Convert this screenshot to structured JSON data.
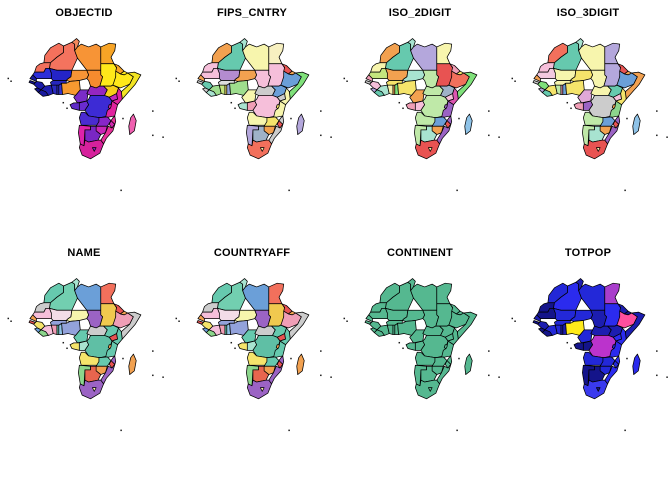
{
  "style": {
    "background": "#ffffff",
    "border_color": "#000000",
    "title_color": "#000000",
    "island_dot_color": "#1a1a1a"
  },
  "figure": {
    "kind": "choropleth-small-multiples",
    "region": "Africa",
    "rows": 2,
    "cols": 4
  },
  "panels": [
    {
      "title": "OBJECTID",
      "default_fill": "#F2A150",
      "fills": {
        "morocco": "#F4715C",
        "western-sahara": "#F2705C",
        "algeria": "#F4735E",
        "tunisia": "#F2885C",
        "libya": "#F79436",
        "egypt": "#F7A426",
        "mauritania": "#2E2ED8",
        "mali": "#2424C8",
        "senegal": "#1A1A9E",
        "guinea-bissau": "#15158F",
        "guinea": "#1C1CA8",
        "sierra-leone": "#14148A",
        "liberia": "#1A1A9E",
        "cote-divoire": "#2020B0",
        "ghana": "#2A2AC0",
        "togo": "#2E2EC8",
        "benin": "#3333D0",
        "burkina-faso": "#2626BD",
        "niger": "#F79436",
        "chad": "#F78B2E",
        "sudan": "#FFE81A",
        "south-sudan": "#F7CE1A",
        "eritrea": "#F7A426",
        "djibouti": "#FFE81A",
        "ethiopia": "#FFE81A",
        "somalia": "#F2E423",
        "nigeria": "#F79A30",
        "cameroon": "#7A2CC8",
        "car": "#9426C0",
        "uganda": "#C426C0",
        "kenya": "#E0249E",
        "gabon": "#5F2BC8",
        "congo": "#6A2BD0",
        "drc": "#3D2BD5",
        "rwanda": "#D028B0",
        "tanzania": "#E0249E",
        "angola": "#4A2BD0",
        "zambia": "#8826C8",
        "malawi": "#D028B0",
        "mozambique": "#E8309A",
        "zimbabwe": "#C827B8",
        "namibia": "#DD22AA",
        "botswana": "#7A27C4",
        "south-africa": "#D6219C",
        "lesotho": "#8826C8",
        "madagascar": "#F060B0"
      }
    },
    {
      "title": "FIPS_CNTRY",
      "default_fill": "#CCCCCC",
      "fills": {
        "morocco": "#F2A150",
        "western-sahara": "#F6BFDA",
        "algeria": "#66C9AE",
        "tunisia": "#A8E3D0",
        "libya": "#F7F5AD",
        "egypt": "#F7F0C0",
        "mauritania": "#F6BFDA",
        "mali": "#B48CD0",
        "senegal": "#F2A150",
        "guinea-bissau": "#CCCCCC",
        "guinea": "#66C9AE",
        "sierra-leone": "#CCCCCC",
        "liberia": "#A8E3D0",
        "cote-divoire": "#9FDE8E",
        "ghana": "#C4E57E",
        "togo": "#F5E46B",
        "benin": "#93A2DB",
        "burkina-faso": "#DDDDDD",
        "niger": "#F2A150",
        "chad": "#F6BFDA",
        "sudan": "#F6BFDA",
        "south-sudan": "#6B9FD8",
        "eritrea": "#E85352",
        "djibouti": "#F2A150",
        "ethiopia": "#6B9FD8",
        "somalia": "#7FE07A",
        "nigeria": "#9FDE8E",
        "cameroon": "#F7F5AD",
        "car": "#CCCCCC",
        "uganda": "#CCCCCC",
        "kenya": "#F7F5AD",
        "gabon": "#A8E3D0",
        "congo": "#F09EB6",
        "drc": "#F6BFDA",
        "rwanda": "#F5E46B",
        "tanzania": "#F7F5AD",
        "angola": "#F7F5AD",
        "zambia": "#F5E46B",
        "malawi": "#E85352",
        "mozambique": "#CCCCCC",
        "zimbabwe": "#F2A150",
        "namibia": "#B4A7DC",
        "botswana": "#9FB2C8",
        "south-africa": "#F2705C",
        "lesotho": "#F7F5AD",
        "madagascar": "#B4A7DC"
      }
    },
    {
      "title": "ISO_2DIGIT",
      "default_fill": "#CCCCCC",
      "fills": {
        "morocco": "#F2A150",
        "western-sahara": "#F7F5AD",
        "algeria": "#66C9AE",
        "tunisia": "#A8E3D0",
        "libya": "#B4A7DC",
        "egypt": "#F7F5AD",
        "mauritania": "#C4E57E",
        "mali": "#F2A150",
        "senegal": "#F09EB6",
        "guinea-bissau": "#CCCCCC",
        "guinea": "#F6BFDA",
        "sierra-leone": "#B4A7DC",
        "liberia": "#66C9AE",
        "cote-divoire": "#A8E3D0",
        "ghana": "#F7F5AD",
        "togo": "#F2A150",
        "benin": "#7FE07A",
        "burkina-faso": "#F5E46B",
        "niger": "#A8E3D0",
        "chad": "#BFE9A8",
        "sudan": "#E85352",
        "south-sudan": "#9FB2C8",
        "eritrea": "#F09EB6",
        "djibouti": "#F5E46B",
        "ethiopia": "#F2705C",
        "somalia": "#7FE07A",
        "nigeria": "#F5E46B",
        "cameroon": "#F2A150",
        "car": "#BFE9A8",
        "uganda": "#F6BFDA",
        "kenya": "#DD55B0",
        "gabon": "#F09EB6",
        "congo": "#F6BFDA",
        "drc": "#BFE9A8",
        "rwanda": "#9B63C4",
        "tanzania": "#9B63C4",
        "angola": "#BFE9A8",
        "zambia": "#6B9FD8",
        "malawi": "#E85352",
        "mozambique": "#9B63C4",
        "zimbabwe": "#F2A150",
        "namibia": "#BFE9A8",
        "botswana": "#A8E3D0",
        "south-africa": "#E85352",
        "lesotho": "#F7F5AD",
        "madagascar": "#8FC3E8"
      }
    },
    {
      "title": "ISO_3DIGIT",
      "default_fill": "#CCCCCC",
      "fills": {
        "morocco": "#F2705C",
        "western-sahara": "#F6BFDA",
        "algeria": "#66C9AE",
        "tunisia": "#A8E3D0",
        "libya": "#F7F5AD",
        "egypt": "#B4A7DC",
        "mauritania": "#F3C9E0",
        "mali": "#F7F5AD",
        "senegal": "#F2A150",
        "guinea-bissau": "#CCCCCC",
        "guinea": "#7FE07A",
        "sierra-leone": "#B4A7DC",
        "liberia": "#66C9AE",
        "cote-divoire": "#F5E46B",
        "ghana": "#BFE9A8",
        "togo": "#F09EB6",
        "benin": "#6B9FD8",
        "burkina-faso": "#F7F5AD",
        "niger": "#F5E46B",
        "chad": "#F7F5AD",
        "sudan": "#B4A7DC",
        "south-sudan": "#66C9AE",
        "eritrea": "#E85352",
        "djibouti": "#F2A150",
        "ethiopia": "#6B9FD8",
        "somalia": "#F2A150",
        "nigeria": "#F5E46B",
        "cameroon": "#E0A8D8",
        "car": "#F7F5AD",
        "uganda": "#F6BFDA",
        "kenya": "#F5E46B",
        "gabon": "#F09EB6",
        "congo": "#9B63C4",
        "drc": "#CCCCCC",
        "rwanda": "#F2A150",
        "tanzania": "#8CD68C",
        "angola": "#BFE9A8",
        "zambia": "#6B9FD8",
        "malawi": "#E85352",
        "mozambique": "#9B63C4",
        "zimbabwe": "#F2A150",
        "namibia": "#BFE9A8",
        "botswana": "#A8E3D0",
        "south-africa": "#E85352",
        "lesotho": "#F7F5AD",
        "madagascar": "#8FC3E8"
      }
    },
    {
      "title": "NAME",
      "default_fill": "#CCCCCC",
      "fills": {
        "morocco": "#66C9AE",
        "western-sahara": "#CCCCCC",
        "algeria": "#72CFB0",
        "tunisia": "#A8E3D0",
        "libya": "#6B9FD8",
        "egypt": "#F2705C",
        "mauritania": "#F6BFDA",
        "mali": "#F3DCE8",
        "senegal": "#F2A150",
        "guinea-bissau": "#E85352",
        "guinea": "#F5E46B",
        "sierra-leone": "#6B9FD8",
        "liberia": "#8CD68C",
        "cote-divoire": "#F6BFDA",
        "ghana": "#F09EB6",
        "togo": "#66C9AE",
        "benin": "#8FC3E8",
        "burkina-faso": "#93A2DB",
        "niger": "#F7F5AD",
        "chad": "#9B63C4",
        "sudan": "#F0C94F",
        "south-sudan": "#66C9AE",
        "eritrea": "#E85352",
        "djibouti": "#F2A150",
        "ethiopia": "#F09EB6",
        "somalia": "#CCCCCC",
        "nigeria": "#93A2DB",
        "cameroon": "#66C9AE",
        "car": "#CCCCCC",
        "uganda": "#E85352",
        "kenya": "#66C9AE",
        "gabon": "#F5E46B",
        "congo": "#A8E3D0",
        "drc": "#5FBFA5",
        "rwanda": "#F2A150",
        "tanzania": "#66C9AE",
        "angola": "#F5E46B",
        "zambia": "#66C9AE",
        "malawi": "#E85352",
        "mozambique": "#9B63C4",
        "zimbabwe": "#F2A150",
        "namibia": "#8CD68C",
        "botswana": "#E8654E",
        "south-africa": "#9B63C4",
        "lesotho": "#F7F5AD",
        "madagascar": "#F2A150"
      }
    },
    {
      "title": "COUNTRYAFF",
      "default_fill": "#CCCCCC",
      "fills": {
        "morocco": "#66C9AE",
        "western-sahara": "#CCCCCC",
        "algeria": "#72CFB0",
        "tunisia": "#A8E3D0",
        "libya": "#6B9FD8",
        "egypt": "#F2705C",
        "mauritania": "#F6BFDA",
        "mali": "#F3DCE8",
        "senegal": "#F2A150",
        "guinea-bissau": "#E85352",
        "guinea": "#F5E46B",
        "sierra-leone": "#6B9FD8",
        "liberia": "#8CD68C",
        "cote-divoire": "#F6BFDA",
        "ghana": "#F09EB6",
        "togo": "#66C9AE",
        "benin": "#8FC3E8",
        "burkina-faso": "#93A2DB",
        "niger": "#F7F5AD",
        "chad": "#9B63C4",
        "sudan": "#F0C94F",
        "south-sudan": "#66C9AE",
        "eritrea": "#E85352",
        "djibouti": "#F2A150",
        "ethiopia": "#F09EB6",
        "somalia": "#CCCCCC",
        "nigeria": "#93A2DB",
        "cameroon": "#66C9AE",
        "car": "#CCCCCC",
        "uganda": "#E85352",
        "kenya": "#66C9AE",
        "gabon": "#F5E46B",
        "congo": "#A8E3D0",
        "drc": "#5FBFA5",
        "rwanda": "#F2A150",
        "tanzania": "#66C9AE",
        "angola": "#F5E46B",
        "zambia": "#66C9AE",
        "malawi": "#E85352",
        "mozambique": "#9B63C4",
        "zimbabwe": "#F2A150",
        "namibia": "#8CD68C",
        "botswana": "#E8654E",
        "south-africa": "#9B63C4",
        "lesotho": "#F7F5AD",
        "madagascar": "#F2A150"
      }
    },
    {
      "title": "CONTINENT",
      "default_fill": "#55B890",
      "fills": {}
    },
    {
      "title": "TOTPOP",
      "default_fill": "#1C1DB0",
      "fills": {
        "morocco": "#2328D8",
        "western-sahara": "#14148A",
        "algeria": "#2B2BEE",
        "tunisia": "#1C1DB0",
        "libya": "#2328D8",
        "egypt": "#A93ECC",
        "mauritania": "#14148A",
        "mali": "#2328D8",
        "senegal": "#1C1DB0",
        "guinea-bissau": "#14148A",
        "guinea": "#1C1DB0",
        "sierra-leone": "#14148A",
        "liberia": "#14148A",
        "cote-divoire": "#2328D8",
        "ghana": "#2328D8",
        "togo": "#1C1DB0",
        "benin": "#1C1DB0",
        "burkina-faso": "#2328D8",
        "niger": "#2328D8",
        "chad": "#1C1DB0",
        "sudan": "#2B2BEE",
        "south-sudan": "#1C1DB0",
        "eritrea": "#1C1DB0",
        "djibouti": "#14148A",
        "ethiopia": "#FF4F9E",
        "somalia": "#1C1DB0",
        "nigeria": "#FFEB1A",
        "cameroon": "#2328D8",
        "car": "#1C1DB0",
        "uganda": "#2B2BEE",
        "kenya": "#2B2BEE",
        "gabon": "#14148A",
        "congo": "#14148A",
        "drc": "#BB33CC",
        "rwanda": "#2328D8",
        "tanzania": "#2B2BEE",
        "angola": "#2328D8",
        "zambia": "#2328D8",
        "malawi": "#2328D8",
        "mozambique": "#2B2BEE",
        "zimbabwe": "#2328D8",
        "namibia": "#14148A",
        "botswana": "#14148A",
        "south-africa": "#3A3AEE",
        "lesotho": "#14148A",
        "madagascar": "#2B2BEE"
      }
    }
  ],
  "countries": [
    "morocco",
    "western-sahara",
    "algeria",
    "tunisia",
    "libya",
    "egypt",
    "mauritania",
    "mali",
    "senegal",
    "guinea-bissau",
    "guinea",
    "sierra-leone",
    "liberia",
    "cote-divoire",
    "ghana",
    "togo",
    "benin",
    "burkina-faso",
    "niger",
    "chad",
    "sudan",
    "south-sudan",
    "eritrea",
    "djibouti",
    "ethiopia",
    "somalia",
    "nigeria",
    "cameroon",
    "car",
    "uganda",
    "kenya",
    "gabon",
    "congo",
    "drc",
    "rwanda",
    "tanzania",
    "angola",
    "zambia",
    "malawi",
    "mozambique",
    "zimbabwe",
    "namibia",
    "botswana",
    "south-africa",
    "lesotho",
    "madagascar"
  ],
  "islands": [
    "cape-verde-a",
    "cape-verde-b",
    "principe",
    "sao-tome",
    "seychelles",
    "comoros",
    "mauritius",
    "reunion",
    "marion-island"
  ]
}
